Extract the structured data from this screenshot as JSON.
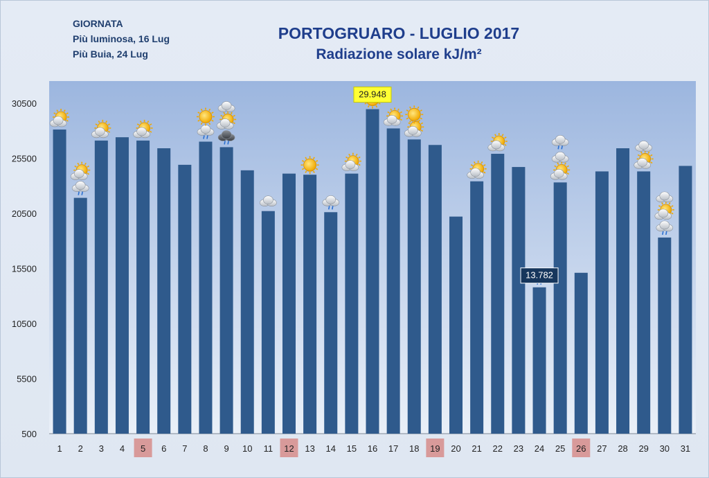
{
  "info": {
    "heading": "GIORNATA",
    "brightest": "Più luminosa, 16 Lug",
    "darkest": "Più Buia, 24 Lug"
  },
  "title": {
    "line1": "PORTOGRUARO - LUGLIO 2017",
    "line2": "Radiazione solare kJ/m²"
  },
  "colors": {
    "bar": "#2f5a8c",
    "plot_top": "#9cb6df",
    "plot_bottom": "#eaf0f8",
    "highlight_yellow": "#ffff33",
    "highlight_dark": "#16365c",
    "sunday_box": "#d89a9a"
  },
  "chart_data": {
    "type": "bar",
    "title": "PORTOGRUARO - LUGLIO 2017",
    "subtitle": "Radiazione solare kJ/m²",
    "categories": [
      "1",
      "2",
      "3",
      "4",
      "5",
      "6",
      "7",
      "8",
      "9",
      "10",
      "11",
      "12",
      "13",
      "14",
      "15",
      "16",
      "17",
      "18",
      "19",
      "20",
      "21",
      "22",
      "23",
      "24",
      "25",
      "26",
      "27",
      "28",
      "29",
      "30",
      "31"
    ],
    "values": [
      28100,
      21900,
      27100,
      27400,
      27100,
      26400,
      24900,
      27000,
      26500,
      24400,
      20700,
      24100,
      24000,
      20600,
      24100,
      29948,
      28200,
      27200,
      26700,
      20200,
      23400,
      25900,
      24700,
      13782,
      23300,
      15100,
      24300,
      26400,
      24300,
      18300,
      24800
    ],
    "ylim": [
      500,
      32500
    ],
    "yticks": [
      500,
      5500,
      10500,
      15500,
      20500,
      25500,
      30500
    ],
    "grid": false,
    "data_labels": [
      {
        "category": "16",
        "text": "29.948",
        "style": "yellow"
      },
      {
        "category": "24",
        "text": "13.782",
        "style": "dark"
      }
    ],
    "highlighted_categories": [
      "5",
      "12",
      "19",
      "26"
    ],
    "weather_icons": [
      {
        "day": "1",
        "icons": [
          "sun-cloud-icon"
        ]
      },
      {
        "day": "2",
        "icons": [
          "sun-cloud-icon",
          "cloud-rain-icon"
        ]
      },
      {
        "day": "3",
        "icons": [
          "sun-cloud-icon"
        ]
      },
      {
        "day": "5",
        "icons": [
          "sun-cloud-icon"
        ]
      },
      {
        "day": "8",
        "icons": [
          "sun-icon",
          "cloud-rain-icon"
        ]
      },
      {
        "day": "9",
        "icons": [
          "cloud-icon",
          "sun-cloud-icon",
          "storm-cloud-icon"
        ]
      },
      {
        "day": "11",
        "icons": [
          "cloud-icon"
        ]
      },
      {
        "day": "13",
        "icons": [
          "sun-icon"
        ]
      },
      {
        "day": "14",
        "icons": [
          "cloud-rain-icon"
        ]
      },
      {
        "day": "15",
        "icons": [
          "sun-cloud-icon"
        ]
      },
      {
        "day": "16",
        "icons": [
          "sun-icon"
        ]
      },
      {
        "day": "17",
        "icons": [
          "sun-cloud-icon"
        ]
      },
      {
        "day": "18",
        "icons": [
          "sun-icon",
          "sun-cloud-icon"
        ]
      },
      {
        "day": "21",
        "icons": [
          "sun-cloud-icon"
        ]
      },
      {
        "day": "22",
        "icons": [
          "sun-cloud-icon"
        ]
      },
      {
        "day": "24",
        "icons": [
          "cloud-rain-icon"
        ]
      },
      {
        "day": "25",
        "icons": [
          "cloud-rain-icon",
          "cloud-icon",
          "sun-cloud-icon"
        ]
      },
      {
        "day": "29",
        "icons": [
          "cloud-icon",
          "sun-cloud-icon"
        ]
      },
      {
        "day": "30",
        "icons": [
          "cloud-icon",
          "sun-cloud-icon",
          "cloud-rain-icon"
        ]
      }
    ]
  }
}
